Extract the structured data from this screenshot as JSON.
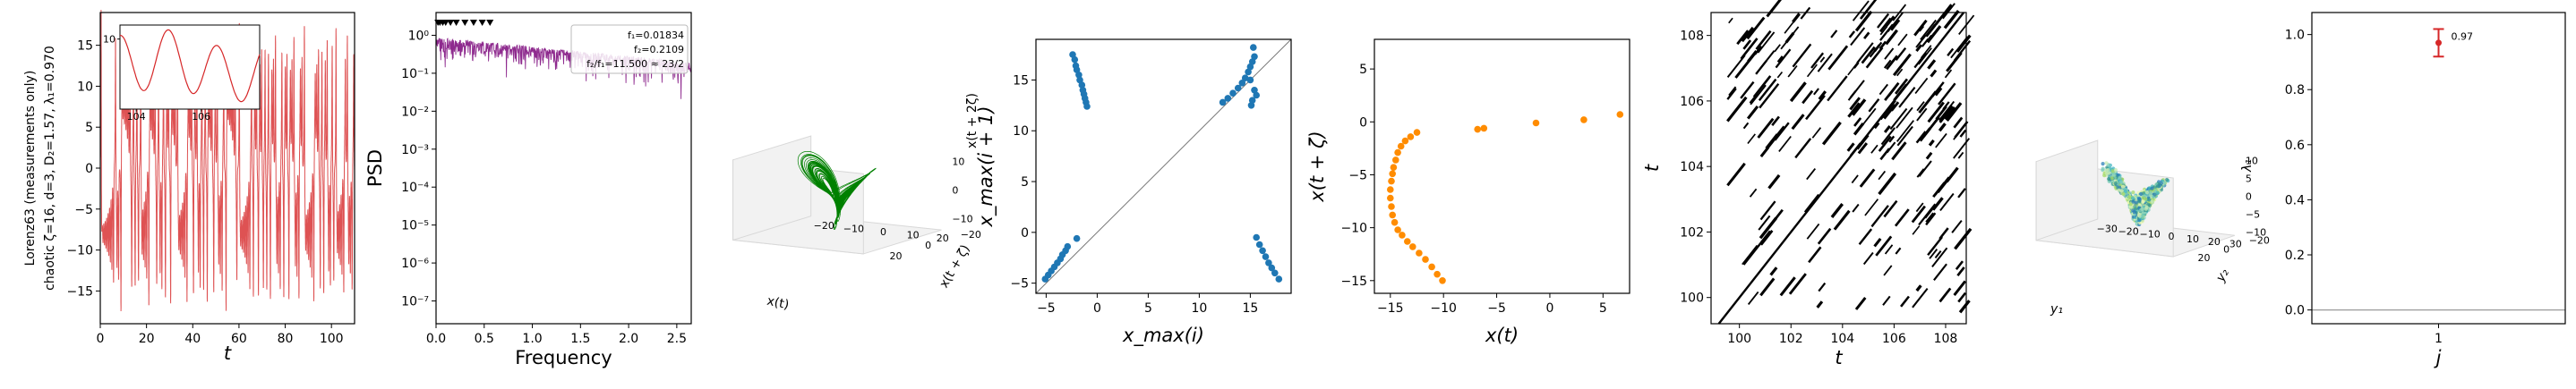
{
  "colors": {
    "timeseries": "#d62728",
    "psd": "#8e2a8e",
    "attractor": "#008000",
    "map": "#1f77b4",
    "section": "#ff8c00",
    "recurrence": "#000000",
    "errorbar": "#d62728"
  },
  "chart_data": [
    {
      "type": "line",
      "panel": "timeseries",
      "ylabel": "Lorenz63 (measurements only)\nchaotic  ζ=16, d=3, D₂=1.57, λ₁=0.970",
      "xlabel": "t",
      "xlim": [
        0,
        110
      ],
      "ylim": [
        -19,
        19
      ],
      "xticks": [
        0,
        20,
        40,
        60,
        80,
        100
      ],
      "yticks": [
        -15,
        -10,
        -5,
        0,
        5,
        10,
        15
      ],
      "inset": {
        "xlim": [
          103.5,
          107.8
        ],
        "ylim": [
          -15,
          15
        ],
        "xticks": [
          104,
          106
        ],
        "yticks": [
          10
        ]
      }
    },
    {
      "type": "line",
      "panel": "psd",
      "ylabel": "PSD",
      "xlabel": "Frequency",
      "yscale": "log",
      "xlim": [
        0,
        2.65
      ],
      "ylim_log10": [
        -7.6,
        0.6
      ],
      "xticks": [
        "0.0",
        "0.5",
        "1.0",
        "1.5",
        "2.0",
        "2.5"
      ],
      "yticks": [
        "10⁰",
        "10⁻¹",
        "10⁻²",
        "10⁻³",
        "10⁻⁴",
        "10⁻⁵",
        "10⁻⁶",
        "10⁻⁷"
      ],
      "annotation": [
        "f₁=0.01834",
        "f₂=0.2109",
        "f₂/f₁=11.500 ≈ 23/2"
      ]
    },
    {
      "type": "line",
      "panel": "attractor-3d",
      "xlabel": "x(t)",
      "ylabel": "x(t + ζ)",
      "zlabel": "x(t + 2ζ)",
      "xticks": [
        "−20",
        "−10",
        "0",
        "10",
        "20"
      ],
      "yticks": [
        "−20",
        "0",
        "20"
      ],
      "zticks": [
        "−10",
        "0",
        "10"
      ]
    },
    {
      "type": "scatter",
      "panel": "return-map",
      "xlabel": "x_max(i)",
      "ylabel": "x_max(i + 1)",
      "xlim": [
        -6,
        19
      ],
      "ylim": [
        -6,
        19
      ],
      "xticks": [
        -5,
        0,
        5,
        10,
        15
      ],
      "yticks": [
        -5,
        0,
        5,
        10,
        15
      ],
      "series": [
        {
          "points": [
            [
              -2.4,
              17.5
            ],
            [
              -2.2,
              17
            ],
            [
              -2.1,
              16.4
            ],
            [
              -2.0,
              16
            ],
            [
              -1.8,
              15.5
            ],
            [
              -1.7,
              15
            ],
            [
              -1.5,
              14.5
            ],
            [
              -1.4,
              14
            ],
            [
              -1.3,
              13.6
            ],
            [
              -1.2,
              13.2
            ],
            [
              -1.1,
              12.8
            ],
            [
              -1.0,
              12.4
            ],
            [
              -5.1,
              -4.6
            ],
            [
              -4.8,
              -4.2
            ],
            [
              -4.5,
              -3.8
            ],
            [
              -4.2,
              -3.4
            ],
            [
              -3.9,
              -3
            ],
            [
              -3.6,
              -2.6
            ],
            [
              -3.4,
              -2.2
            ],
            [
              -3.1,
              -1.8
            ],
            [
              -2.9,
              -1.4
            ],
            [
              -2.0,
              -0.6
            ],
            [
              12.3,
              12.8
            ],
            [
              12.8,
              13.2
            ],
            [
              13.3,
              13.7
            ],
            [
              13.8,
              14.2
            ],
            [
              14.2,
              14.7
            ],
            [
              14.5,
              15.2
            ],
            [
              14.8,
              15.8
            ],
            [
              15.0,
              16.3
            ],
            [
              15.2,
              16.8
            ],
            [
              15.4,
              17.3
            ],
            [
              15.3,
              18.2
            ],
            [
              15.1,
              12.5
            ],
            [
              15.2,
              13
            ],
            [
              15.4,
              14
            ],
            [
              15.6,
              13.5
            ],
            [
              15.0,
              15
            ],
            [
              15.6,
              -0.5
            ],
            [
              15.9,
              -1.2
            ],
            [
              16.2,
              -1.8
            ],
            [
              16.5,
              -2.4
            ],
            [
              16.8,
              -3
            ],
            [
              17.1,
              -3.5
            ],
            [
              17.4,
              -4
            ],
            [
              17.8,
              -4.6
            ]
          ]
        }
      ]
    },
    {
      "type": "scatter",
      "panel": "section",
      "xlabel": "x(t)",
      "ylabel": "x(t + ζ)",
      "xlim": [
        -16.5,
        7.5
      ],
      "ylim": [
        -16.2,
        7.8
      ],
      "xticks": [
        -15,
        -10,
        -5,
        0,
        5
      ],
      "yticks": [
        -15,
        -10,
        -5,
        0,
        5
      ],
      "series": [
        {
          "points": [
            [
              -10.1,
              -15
            ],
            [
              -10.6,
              -14.4
            ],
            [
              -11.1,
              -13.7
            ],
            [
              -11.7,
              -13
            ],
            [
              -12.3,
              -12.4
            ],
            [
              -12.9,
              -11.8
            ],
            [
              -13.4,
              -11.3
            ],
            [
              -13.9,
              -10.7
            ],
            [
              -14.3,
              -10.2
            ],
            [
              -14.6,
              -9.5
            ],
            [
              -14.8,
              -8.8
            ],
            [
              -14.9,
              -8
            ],
            [
              -15.0,
              -7.2
            ],
            [
              -15.0,
              -6.4
            ],
            [
              -14.9,
              -5.6
            ],
            [
              -14.8,
              -4.9
            ],
            [
              -14.7,
              -4.3
            ],
            [
              -14.5,
              -3.6
            ],
            [
              -14.3,
              -2.9
            ],
            [
              -14.0,
              -2.3
            ],
            [
              -13.6,
              -1.8
            ],
            [
              -13.1,
              -1.4
            ],
            [
              -12.5,
              -1.0
            ],
            [
              -6.8,
              -0.7
            ],
            [
              -6.2,
              -0.6
            ],
            [
              -1.3,
              -0.1
            ],
            [
              3.2,
              0.2
            ],
            [
              6.6,
              0.7
            ]
          ]
        }
      ]
    },
    {
      "type": "heatmap",
      "panel": "recurrence",
      "ylabel": "t",
      "xlabel": "t",
      "xlim": [
        98.9,
        108.8
      ],
      "ylim": [
        99.2,
        108.7
      ],
      "xticks": [
        100,
        102,
        104,
        106,
        108
      ],
      "yticks": [
        100,
        102,
        104,
        106,
        108
      ]
    },
    {
      "type": "scatter",
      "panel": "embedding-3d",
      "xlabel": "y₁",
      "ylabel": "y₂",
      "zlabel": "λ₁",
      "xticks": [
        "−30",
        "−20",
        "−10",
        "0",
        "10",
        "20",
        "30"
      ],
      "yticks": [
        "−20",
        "0",
        "20"
      ],
      "zticks": [
        "10",
        "5",
        "0",
        "−5",
        "−10"
      ]
    },
    {
      "type": "scatter",
      "panel": "lyapunov",
      "xlabel": "j",
      "ylabel": "",
      "xticks": [
        "1"
      ],
      "yticks": [
        "0.0",
        "0.2",
        "0.4",
        "0.6",
        "0.8",
        "1.0"
      ],
      "ylim": [
        -0.05,
        1.08
      ],
      "x": [
        1
      ],
      "values": [
        0.97
      ],
      "errors": [
        0.05
      ],
      "data_labels": [
        "0.97"
      ]
    }
  ]
}
